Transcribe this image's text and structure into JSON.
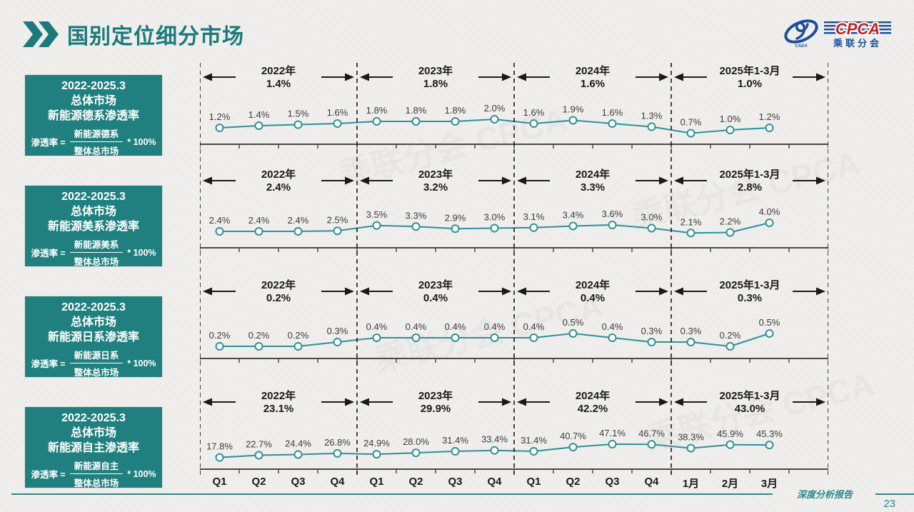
{
  "page": {
    "title": "国别定位细分市场",
    "footer_label": "深度分析报告",
    "page_number": "23"
  },
  "logo": {
    "cpca": "CPCA",
    "cn_name": "乘联分会",
    "sub": "CADA"
  },
  "colors": {
    "title_teal": "#1a7a7c",
    "box_teal": "#20807f",
    "line_teal": "#2f9097",
    "footer_teal": "#2a8a8a",
    "logo_blue": "#1b4e9b",
    "logo_red": "#c2201f"
  },
  "x_labels": [
    "Q1",
    "Q2",
    "Q3",
    "Q4",
    "Q1",
    "Q2",
    "Q3",
    "Q4",
    "Q1",
    "Q2",
    "Q3",
    "Q4",
    "1月",
    "2月",
    "3月"
  ],
  "chart_data": [
    {
      "type": "line",
      "title": "2022-2025.3 总体市场 新能源德系渗透率",
      "box": {
        "period": "2022-2025.3",
        "market": "总体市场",
        "metric": "新能源德系渗透率"
      },
      "formula": {
        "prefix": "渗透率 =",
        "numerator": "新能源德系",
        "denominator": "整体总市场",
        "suffix": "* 100%"
      },
      "segments": [
        {
          "label": "2022年",
          "value": "1.4%"
        },
        {
          "label": "2023年",
          "value": "1.8%"
        },
        {
          "label": "2024年",
          "value": "1.6%"
        },
        {
          "label": "2025年1-3月",
          "value": "1.0%"
        }
      ],
      "categories": [
        "Q1",
        "Q2",
        "Q3",
        "Q4",
        "Q1",
        "Q2",
        "Q3",
        "Q4",
        "Q1",
        "Q2",
        "Q3",
        "Q4",
        "1月",
        "2月",
        "3月"
      ],
      "values": [
        1.2,
        1.4,
        1.5,
        1.6,
        1.8,
        1.8,
        1.8,
        2.0,
        1.6,
        1.9,
        1.6,
        1.3,
        0.7,
        1.0,
        1.2
      ],
      "labels": [
        "1.2%",
        "1.4%",
        "1.5%",
        "1.6%",
        "1.8%",
        "1.8%",
        "1.8%",
        "2.0%",
        "1.6%",
        "1.9%",
        "1.6%",
        "1.3%",
        "0.7%",
        "1.0%",
        "1.2%"
      ]
    },
    {
      "type": "line",
      "title": "2022-2025.3 总体市场 新能源美系渗透率",
      "box": {
        "period": "2022-2025.3",
        "market": "总体市场",
        "metric": "新能源美系渗透率"
      },
      "formula": {
        "prefix": "渗透率 =",
        "numerator": "新能源美系",
        "denominator": "整体总市场",
        "suffix": "* 100%"
      },
      "segments": [
        {
          "label": "2022年",
          "value": "2.4%"
        },
        {
          "label": "2023年",
          "value": "3.2%"
        },
        {
          "label": "2024年",
          "value": "3.3%"
        },
        {
          "label": "2025年1-3月",
          "value": "2.8%"
        }
      ],
      "categories": [
        "Q1",
        "Q2",
        "Q3",
        "Q4",
        "Q1",
        "Q2",
        "Q3",
        "Q4",
        "Q1",
        "Q2",
        "Q3",
        "Q4",
        "1月",
        "2月",
        "3月"
      ],
      "values": [
        2.4,
        2.4,
        2.4,
        2.5,
        3.5,
        3.3,
        2.9,
        3.0,
        3.1,
        3.4,
        3.6,
        3.0,
        2.1,
        2.2,
        4.0
      ],
      "labels": [
        "2.4%",
        "2.4%",
        "2.4%",
        "2.5%",
        "3.5%",
        "3.3%",
        "2.9%",
        "3.0%",
        "3.1%",
        "3.4%",
        "3.6%",
        "3.0%",
        "2.1%",
        "2.2%",
        "4.0%"
      ]
    },
    {
      "type": "line",
      "title": "2022-2025.3 总体市场 新能源日系渗透率",
      "box": {
        "period": "2022-2025.3",
        "market": "总体市场",
        "metric": "新能源日系渗透率"
      },
      "formula": {
        "prefix": "渗透率 =",
        "numerator": "新能源日系",
        "denominator": "整体总市场",
        "suffix": "* 100%"
      },
      "segments": [
        {
          "label": "2022年",
          "value": "0.2%"
        },
        {
          "label": "2023年",
          "value": "0.4%"
        },
        {
          "label": "2024年",
          "value": "0.4%"
        },
        {
          "label": "2025年1-3月",
          "value": "0.3%"
        }
      ],
      "categories": [
        "Q1",
        "Q2",
        "Q3",
        "Q4",
        "Q1",
        "Q2",
        "Q3",
        "Q4",
        "Q1",
        "Q2",
        "Q3",
        "Q4",
        "1月",
        "2月",
        "3月"
      ],
      "values": [
        0.2,
        0.2,
        0.2,
        0.3,
        0.4,
        0.4,
        0.4,
        0.4,
        0.4,
        0.5,
        0.4,
        0.3,
        0.3,
        0.2,
        0.5
      ],
      "labels": [
        "0.2%",
        "0.2%",
        "0.2%",
        "0.3%",
        "0.4%",
        "0.4%",
        "0.4%",
        "0.4%",
        "0.4%",
        "0.5%",
        "0.4%",
        "0.3%",
        "0.3%",
        "0.2%",
        "0.5%"
      ]
    },
    {
      "type": "line",
      "title": "2022-2025.3 总体市场 新能源自主渗透率",
      "box": {
        "period": "2022-2025.3",
        "market": "总体市场",
        "metric": "新能源自主渗透率"
      },
      "formula": {
        "prefix": "渗透率 =",
        "numerator": "新能源自主",
        "denominator": "整体总市场",
        "suffix": "* 100%"
      },
      "segments": [
        {
          "label": "2022年",
          "value": "23.1%"
        },
        {
          "label": "2023年",
          "value": "29.9%"
        },
        {
          "label": "2024年",
          "value": "42.2%"
        },
        {
          "label": "2025年1-3月",
          "value": "43.0%"
        }
      ],
      "categories": [
        "Q1",
        "Q2",
        "Q3",
        "Q4",
        "Q1",
        "Q2",
        "Q3",
        "Q4",
        "Q1",
        "Q2",
        "Q3",
        "Q4",
        "1月",
        "2月",
        "3月"
      ],
      "values": [
        17.8,
        22.7,
        24.4,
        26.8,
        24.9,
        28.0,
        31.4,
        33.4,
        31.4,
        40.7,
        47.1,
        46.7,
        38.3,
        45.9,
        45.3
      ],
      "labels": [
        "17.8%",
        "22.7%",
        "24.4%",
        "26.8%",
        "24.9%",
        "28.0%",
        "31.4%",
        "33.4%",
        "31.4%",
        "40.7%",
        "47.1%",
        "46.7%",
        "38.3%",
        "45.9%",
        "45.3%"
      ]
    }
  ]
}
